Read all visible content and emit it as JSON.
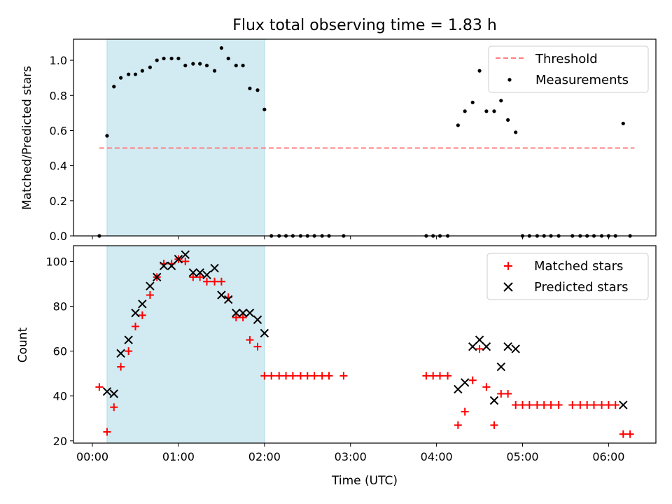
{
  "title": "Flux total observing time = 1.83 h",
  "xaxis": {
    "label": "Time (UTC)",
    "range": [
      -0.22,
      6.55
    ],
    "ticks": [
      0,
      1,
      2,
      3,
      4,
      5,
      6
    ],
    "tick_labels": [
      "00:00",
      "01:00",
      "02:00",
      "03:00",
      "04:00",
      "05:00",
      "06:00"
    ]
  },
  "shaded_region": {
    "x": [
      0.17,
      2.0
    ],
    "color": "#add8e6"
  },
  "colors": {
    "threshold": "#ff7f7f",
    "measurements": "#000000",
    "matched": "#ff0000",
    "predicted": "#000000"
  },
  "chart_data": [
    {
      "type": "scatter",
      "ylabel": "Matched/Predicted stars",
      "ylim": [
        0,
        1.12
      ],
      "yticks": [
        0.0,
        0.2,
        0.4,
        0.6,
        0.8,
        1.0
      ],
      "ytick_labels": [
        "0.0",
        "0.2",
        "0.4",
        "0.6",
        "0.8",
        "1.0"
      ],
      "legend": {
        "placement": "top-right",
        "threshold_label": "Threshold",
        "measurements_label": "Measurements"
      },
      "threshold": {
        "value": 0.5,
        "x": [
          0.08,
          6.3
        ]
      },
      "measurements": [
        [
          0.08,
          0.0
        ],
        [
          0.17,
          0.57
        ],
        [
          0.25,
          0.85
        ],
        [
          0.33,
          0.9
        ],
        [
          0.42,
          0.92
        ],
        [
          0.5,
          0.92
        ],
        [
          0.58,
          0.94
        ],
        [
          0.67,
          0.96
        ],
        [
          0.75,
          1.0
        ],
        [
          0.83,
          1.01
        ],
        [
          0.92,
          1.01
        ],
        [
          1.0,
          1.01
        ],
        [
          1.08,
          0.97
        ],
        [
          1.17,
          0.98
        ],
        [
          1.25,
          0.98
        ],
        [
          1.33,
          0.97
        ],
        [
          1.42,
          0.94
        ],
        [
          1.5,
          1.07
        ],
        [
          1.58,
          1.01
        ],
        [
          1.67,
          0.97
        ],
        [
          1.75,
          0.97
        ],
        [
          1.83,
          0.84
        ],
        [
          1.92,
          0.83
        ],
        [
          2.0,
          0.72
        ],
        [
          2.08,
          0.0
        ],
        [
          2.17,
          0.0
        ],
        [
          2.25,
          0.0
        ],
        [
          2.33,
          0.0
        ],
        [
          2.42,
          0.0
        ],
        [
          2.5,
          0.0
        ],
        [
          2.58,
          0.0
        ],
        [
          2.67,
          0.0
        ],
        [
          2.75,
          0.0
        ],
        [
          2.92,
          0.0
        ],
        [
          3.88,
          0.0
        ],
        [
          3.96,
          0.0
        ],
        [
          4.04,
          0.0
        ],
        [
          4.13,
          0.0
        ],
        [
          4.25,
          0.63
        ],
        [
          4.33,
          0.71
        ],
        [
          4.42,
          0.76
        ],
        [
          4.5,
          0.94
        ],
        [
          4.58,
          0.71
        ],
        [
          4.67,
          0.71
        ],
        [
          4.75,
          0.77
        ],
        [
          4.83,
          0.66
        ],
        [
          4.92,
          0.59
        ],
        [
          5.0,
          0.0
        ],
        [
          5.08,
          0.0
        ],
        [
          5.17,
          0.0
        ],
        [
          5.25,
          0.0
        ],
        [
          5.33,
          0.0
        ],
        [
          5.42,
          0.0
        ],
        [
          5.58,
          0.0
        ],
        [
          5.67,
          0.0
        ],
        [
          5.75,
          0.0
        ],
        [
          5.83,
          0.0
        ],
        [
          5.92,
          0.0
        ],
        [
          6.0,
          0.0
        ],
        [
          6.08,
          0.0
        ],
        [
          6.17,
          0.64
        ],
        [
          6.25,
          0.0
        ]
      ]
    },
    {
      "type": "scatter",
      "ylabel": "Count",
      "ylim": [
        19,
        107
      ],
      "yticks": [
        20,
        40,
        60,
        80,
        100
      ],
      "ytick_labels": [
        "20",
        "40",
        "60",
        "80",
        "100"
      ],
      "legend": {
        "placement": "top-right",
        "matched_label": "Matched stars",
        "predicted_label": "Predicted stars"
      },
      "matched": [
        [
          0.08,
          44
        ],
        [
          0.17,
          24
        ],
        [
          0.25,
          35
        ],
        [
          0.33,
          53
        ],
        [
          0.42,
          60
        ],
        [
          0.5,
          71
        ],
        [
          0.58,
          76
        ],
        [
          0.67,
          85
        ],
        [
          0.75,
          93
        ],
        [
          0.83,
          99
        ],
        [
          0.92,
          99
        ],
        [
          1.0,
          101
        ],
        [
          1.08,
          100
        ],
        [
          1.17,
          93
        ],
        [
          1.25,
          93
        ],
        [
          1.33,
          91
        ],
        [
          1.42,
          91
        ],
        [
          1.5,
          91
        ],
        [
          1.58,
          84
        ],
        [
          1.67,
          75
        ],
        [
          1.75,
          75
        ],
        [
          1.83,
          65
        ],
        [
          1.92,
          62
        ],
        [
          2.0,
          49
        ],
        [
          2.08,
          49
        ],
        [
          2.17,
          49
        ],
        [
          2.25,
          49
        ],
        [
          2.33,
          49
        ],
        [
          2.42,
          49
        ],
        [
          2.5,
          49
        ],
        [
          2.58,
          49
        ],
        [
          2.67,
          49
        ],
        [
          2.75,
          49
        ],
        [
          2.92,
          49
        ],
        [
          3.88,
          49
        ],
        [
          3.96,
          49
        ],
        [
          4.04,
          49
        ],
        [
          4.13,
          49
        ],
        [
          4.25,
          27
        ],
        [
          4.33,
          33
        ],
        [
          4.42,
          47
        ],
        [
          4.5,
          61
        ],
        [
          4.58,
          44
        ],
        [
          4.67,
          27
        ],
        [
          4.75,
          41
        ],
        [
          4.83,
          41
        ],
        [
          4.92,
          36
        ],
        [
          5.0,
          36
        ],
        [
          5.08,
          36
        ],
        [
          5.17,
          36
        ],
        [
          5.25,
          36
        ],
        [
          5.33,
          36
        ],
        [
          5.42,
          36
        ],
        [
          5.58,
          36
        ],
        [
          5.67,
          36
        ],
        [
          5.75,
          36
        ],
        [
          5.83,
          36
        ],
        [
          5.92,
          36
        ],
        [
          6.0,
          36
        ],
        [
          6.08,
          36
        ],
        [
          6.17,
          23
        ],
        [
          6.25,
          23
        ]
      ],
      "predicted": [
        [
          0.17,
          42
        ],
        [
          0.25,
          41
        ],
        [
          0.33,
          59
        ],
        [
          0.42,
          65
        ],
        [
          0.5,
          77
        ],
        [
          0.58,
          81
        ],
        [
          0.67,
          89
        ],
        [
          0.75,
          93
        ],
        [
          0.83,
          98
        ],
        [
          0.92,
          98
        ],
        [
          1.0,
          101
        ],
        [
          1.08,
          103
        ],
        [
          1.17,
          95
        ],
        [
          1.25,
          95
        ],
        [
          1.33,
          94
        ],
        [
          1.42,
          97
        ],
        [
          1.5,
          85
        ],
        [
          1.58,
          83
        ],
        [
          1.67,
          77
        ],
        [
          1.75,
          77
        ],
        [
          1.83,
          77
        ],
        [
          1.92,
          74
        ],
        [
          2.0,
          68
        ],
        [
          4.25,
          43
        ],
        [
          4.33,
          46
        ],
        [
          4.42,
          62
        ],
        [
          4.5,
          65
        ],
        [
          4.58,
          62
        ],
        [
          4.67,
          38
        ],
        [
          4.75,
          53
        ],
        [
          4.83,
          62
        ],
        [
          4.92,
          61
        ],
        [
          6.17,
          36
        ]
      ]
    }
  ]
}
